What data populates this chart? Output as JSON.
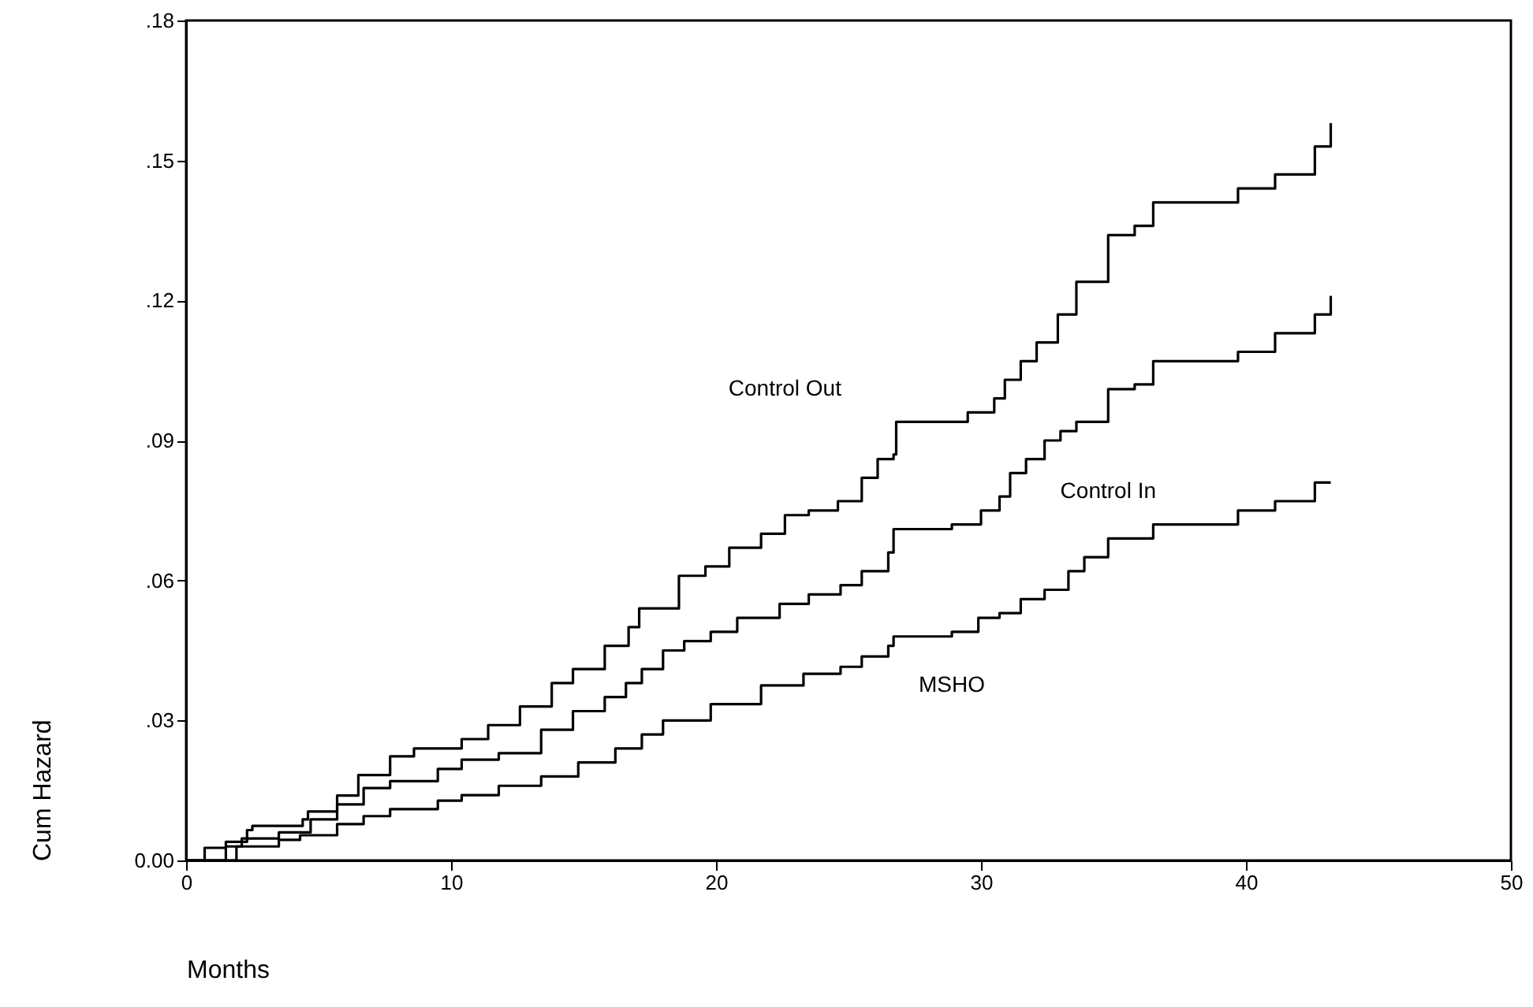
{
  "chart_data": {
    "type": "step",
    "xlabel": "Months",
    "ylabel": "Cum Hazard",
    "xlim": [
      0,
      50
    ],
    "xticks": [
      0,
      10,
      20,
      30,
      40,
      50
    ],
    "ylim": [
      0,
      0.18
    ],
    "yticks": [
      {
        "value": 0,
        "label": "0.00"
      },
      {
        "value": 0.03,
        "label": ".03"
      },
      {
        "value": 0.06,
        "label": ".06"
      },
      {
        "value": 0.09,
        "label": ".09"
      },
      {
        "value": 0.12,
        "label": ".12"
      },
      {
        "value": 0.15,
        "label": ".15"
      },
      {
        "value": 0.18,
        "label": ".18"
      }
    ],
    "grid": false,
    "marker": "none",
    "line_style": "solid",
    "series": [
      {
        "name": "Control Out",
        "color": "#000000",
        "x": [
          0,
          0.7,
          1.5,
          2.3,
          2.5,
          4.4,
          4.6,
          5.7,
          6.5,
          7.7,
          8.6,
          10.4,
          11.4,
          12.6,
          13.8,
          14.6,
          15.8,
          16.7,
          17.1,
          18.6,
          19.6,
          20.5,
          21.7,
          22.6,
          23.5,
          24.6,
          25.5,
          26.1,
          26.7,
          26.8,
          29.5,
          30.5,
          30.9,
          31.5,
          32.1,
          32.9,
          33.6,
          34.8,
          35.8,
          36.5,
          39.7,
          41.1,
          42.6,
          43.2,
          43.2
        ],
        "values": [
          0,
          0.0027,
          0.004,
          0.0065,
          0.0074,
          0.0088,
          0.0105,
          0.0139,
          0.0183,
          0.0223,
          0.024,
          0.026,
          0.029,
          0.033,
          0.038,
          0.041,
          0.046,
          0.05,
          0.054,
          0.061,
          0.063,
          0.067,
          0.07,
          0.074,
          0.075,
          0.077,
          0.082,
          0.086,
          0.087,
          0.094,
          0.096,
          0.099,
          0.103,
          0.107,
          0.111,
          0.117,
          0.124,
          0.134,
          0.136,
          0.141,
          0.144,
          0.147,
          0.153,
          0.158,
          0.158
        ]
      },
      {
        "name": "Control In",
        "color": "#000000",
        "x": [
          0,
          1.5,
          2.1,
          3.5,
          4.7,
          5.7,
          6.7,
          7.7,
          9.5,
          10.4,
          11.8,
          13.4,
          14.6,
          15.8,
          16.6,
          17.2,
          18.0,
          18.8,
          19.8,
          20.8,
          22.4,
          23.5,
          24.7,
          25.5,
          26.5,
          26.7,
          28.9,
          30.0,
          30.7,
          31.1,
          31.7,
          32.4,
          33.0,
          33.6,
          34.8,
          35.8,
          36.5,
          39.7,
          41.1,
          42.6,
          43.2,
          43.2
        ],
        "values": [
          0,
          0.003,
          0.0047,
          0.006,
          0.0088,
          0.012,
          0.0155,
          0.017,
          0.0196,
          0.0216,
          0.023,
          0.028,
          0.032,
          0.035,
          0.038,
          0.041,
          0.045,
          0.047,
          0.049,
          0.052,
          0.055,
          0.057,
          0.059,
          0.062,
          0.066,
          0.071,
          0.072,
          0.075,
          0.078,
          0.083,
          0.086,
          0.09,
          0.092,
          0.094,
          0.101,
          0.102,
          0.107,
          0.109,
          0.113,
          0.117,
          0.121,
          0.121
        ]
      },
      {
        "name": "MSHO",
        "color": "#000000",
        "x": [
          0,
          1.9,
          3.5,
          4.3,
          5.7,
          6.7,
          7.7,
          9.5,
          10.4,
          11.8,
          13.4,
          14.8,
          16.2,
          17.2,
          18.0,
          19.8,
          21.7,
          23.3,
          24.7,
          25.5,
          26.5,
          26.7,
          28.9,
          29.9,
          30.7,
          31.5,
          32.4,
          33.3,
          33.9,
          34.8,
          36.5,
          39.7,
          41.1,
          42.6,
          43.2
        ],
        "values": [
          0,
          0.003,
          0.0044,
          0.0054,
          0.0078,
          0.0095,
          0.011,
          0.0128,
          0.014,
          0.016,
          0.018,
          0.021,
          0.024,
          0.027,
          0.03,
          0.0335,
          0.0375,
          0.04,
          0.0415,
          0.0437,
          0.046,
          0.048,
          0.049,
          0.052,
          0.053,
          0.056,
          0.058,
          0.062,
          0.065,
          0.069,
          0.072,
          0.075,
          0.077,
          0.081,
          0.081
        ]
      }
    ]
  }
}
